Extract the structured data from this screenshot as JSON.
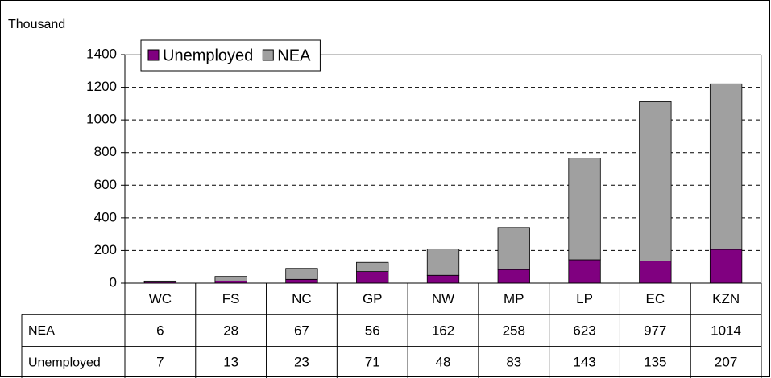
{
  "chart_data": {
    "type": "stacked_bar",
    "y_label": "Thousand",
    "categories": [
      "WC",
      "FS",
      "NC",
      "GP",
      "NW",
      "MP",
      "LP",
      "EC",
      "KZN"
    ],
    "series": [
      {
        "name": "Unemployed",
        "color": "#800080",
        "values": [
          7,
          13,
          23,
          71,
          48,
          83,
          143,
          135,
          207
        ]
      },
      {
        "name": "NEA",
        "color": "#a0a0a0",
        "values": [
          6,
          28,
          67,
          56,
          162,
          258,
          623,
          977,
          1014
        ]
      }
    ],
    "ylim": [
      0,
      1400
    ],
    "yticks": [
      0,
      200,
      400,
      600,
      800,
      1000,
      1200,
      1400
    ],
    "grid": true,
    "legend": "top"
  }
}
